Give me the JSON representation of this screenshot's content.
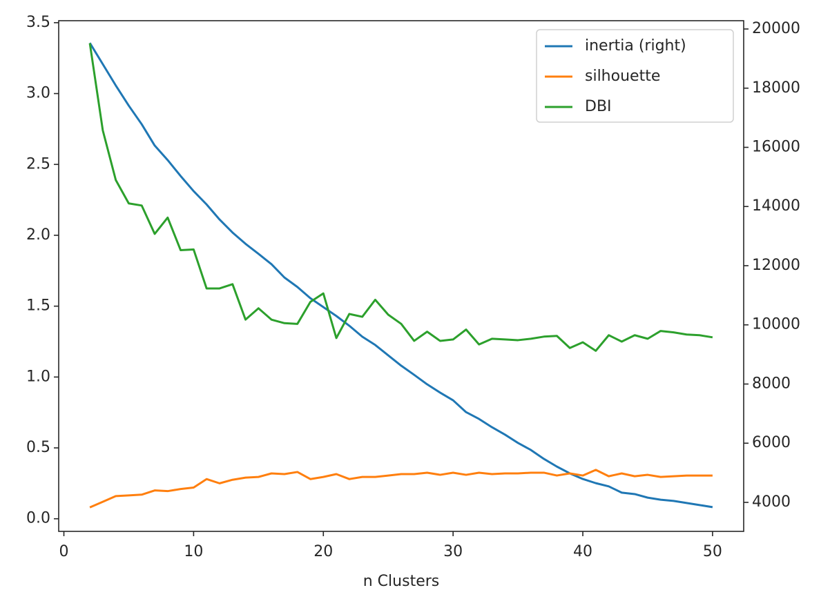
{
  "chart_data": {
    "type": "line",
    "x_label": "n Clusters",
    "x": [
      2,
      3,
      4,
      5,
      6,
      7,
      8,
      9,
      10,
      11,
      12,
      13,
      14,
      15,
      16,
      17,
      18,
      19,
      20,
      21,
      22,
      23,
      24,
      25,
      26,
      27,
      28,
      29,
      30,
      31,
      32,
      33,
      34,
      35,
      36,
      37,
      38,
      39,
      40,
      41,
      42,
      43,
      44,
      45,
      46,
      47,
      48,
      49,
      50
    ],
    "series": [
      {
        "name": "inertia (right)",
        "color": "#1f77b4",
        "axis": "y2",
        "values": [
          19530,
          18810,
          18090,
          17410,
          16780,
          16060,
          15570,
          15030,
          14520,
          14070,
          13560,
          13120,
          12740,
          12400,
          12050,
          11600,
          11280,
          10900,
          10600,
          10300,
          9970,
          9600,
          9320,
          8970,
          8620,
          8310,
          7990,
          7710,
          7450,
          7050,
          6820,
          6540,
          6290,
          6010,
          5770,
          5470,
          5210,
          4980,
          4790,
          4650,
          4540,
          4330,
          4280,
          4160,
          4090,
          4050,
          3980,
          3910,
          3840
        ]
      },
      {
        "name": "silhouette",
        "color": "#ff7f0e",
        "values": [
          0.08,
          0.12,
          0.16,
          0.165,
          0.17,
          0.2,
          0.195,
          0.21,
          0.22,
          0.28,
          0.25,
          0.275,
          0.29,
          0.295,
          0.32,
          0.315,
          0.33,
          0.28,
          0.295,
          0.315,
          0.28,
          0.295,
          0.295,
          0.305,
          0.315,
          0.315,
          0.325,
          0.31,
          0.325,
          0.31,
          0.325,
          0.315,
          0.32,
          0.32,
          0.325,
          0.325,
          0.305,
          0.32,
          0.305,
          0.345,
          0.3,
          0.32,
          0.3,
          0.31,
          0.295,
          0.3,
          0.305,
          0.305,
          0.305
        ]
      },
      {
        "name": "DBI",
        "color": "#2ca02c",
        "values": [
          3.355,
          2.74,
          2.39,
          2.225,
          2.21,
          2.01,
          2.125,
          1.895,
          1.9,
          1.625,
          1.625,
          1.655,
          1.405,
          1.485,
          1.405,
          1.38,
          1.375,
          1.53,
          1.59,
          1.275,
          1.445,
          1.425,
          1.545,
          1.44,
          1.375,
          1.255,
          1.32,
          1.255,
          1.265,
          1.335,
          1.23,
          1.27,
          1.265,
          1.26,
          1.27,
          1.285,
          1.29,
          1.205,
          1.245,
          1.185,
          1.295,
          1.25,
          1.295,
          1.27,
          1.325,
          1.315,
          1.3,
          1.295,
          1.28
        ]
      }
    ],
    "xlim": [
      -0.4,
      52.4
    ],
    "xticks": [
      0,
      10,
      20,
      30,
      40,
      50
    ],
    "ylim": [
      -0.089,
      3.514
    ],
    "yticks": [
      {
        "value": 0,
        "label": "0.0"
      },
      0.5,
      {
        "value": 1,
        "label": "1.0"
      },
      1.5,
      {
        "value": 2,
        "label": "2.0"
      },
      2.5,
      {
        "value": 3,
        "label": "3.0"
      },
      3.5
    ],
    "y2lim": [
      3020,
      20280
    ],
    "y2ticks": [
      4000,
      6000,
      8000,
      10000,
      12000,
      14000,
      16000,
      18000,
      20000
    ],
    "legend": "upper right"
  }
}
